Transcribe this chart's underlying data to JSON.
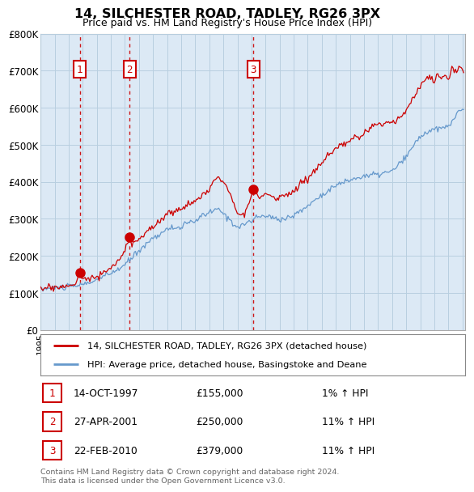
{
  "title": "14, SILCHESTER ROAD, TADLEY, RG26 3PX",
  "subtitle": "Price paid vs. HM Land Registry's House Price Index (HPI)",
  "legend_line1": "14, SILCHESTER ROAD, TADLEY, RG26 3PX (detached house)",
  "legend_line2": "HPI: Average price, detached house, Basingstoke and Deane",
  "sale_color": "#cc0000",
  "hpi_color": "#6699cc",
  "chart_bg": "#dce9f5",
  "ylim": [
    0,
    800000
  ],
  "yticks": [
    0,
    100000,
    200000,
    300000,
    400000,
    500000,
    600000,
    700000,
    800000
  ],
  "ytick_labels": [
    "£0",
    "£100K",
    "£200K",
    "£300K",
    "£400K",
    "£500K",
    "£600K",
    "£700K",
    "£800K"
  ],
  "footnote": "Contains HM Land Registry data © Crown copyright and database right 2024.\nThis data is licensed under the Open Government Licence v3.0.",
  "sales": [
    {
      "date_num": 1997.79,
      "price": 155000,
      "label": "1"
    },
    {
      "date_num": 2001.32,
      "price": 250000,
      "label": "2"
    },
    {
      "date_num": 2010.14,
      "price": 379000,
      "label": "3"
    }
  ],
  "table_rows": [
    {
      "num": "1",
      "date": "14-OCT-1997",
      "price": "£155,000",
      "hpi": "1% ↑ HPI"
    },
    {
      "num": "2",
      "date": "27-APR-2001",
      "price": "£250,000",
      "hpi": "11% ↑ HPI"
    },
    {
      "num": "3",
      "date": "22-FEB-2010",
      "price": "£379,000",
      "hpi": "11% ↑ HPI"
    }
  ],
  "background_color": "#ffffff",
  "grid_color": "#b8cfe0"
}
